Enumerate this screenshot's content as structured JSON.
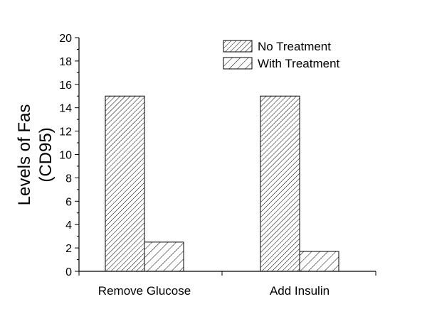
{
  "chart_data": {
    "type": "bar",
    "title": "",
    "xlabel": "",
    "ylabel_lines": [
      "Levels of Fas",
      "(CD95)"
    ],
    "categories": [
      "Remove Glucose",
      "Add Insulin"
    ],
    "series": [
      {
        "name": "No Treatment",
        "values": [
          15,
          15
        ],
        "pattern": "dense-hatch"
      },
      {
        "name": "With Treatment",
        "values": [
          2.5,
          1.7
        ],
        "pattern": "sparse-hatch"
      }
    ],
    "ylim": [
      0,
      20
    ],
    "yticks": [
      "0",
      "2",
      "4",
      "6",
      "8",
      "10",
      "12",
      "14",
      "16",
      "18",
      "20"
    ],
    "grid": false,
    "legend_position": "top-right",
    "colors": {
      "stroke": "#000000",
      "background": "#ffffff"
    }
  }
}
